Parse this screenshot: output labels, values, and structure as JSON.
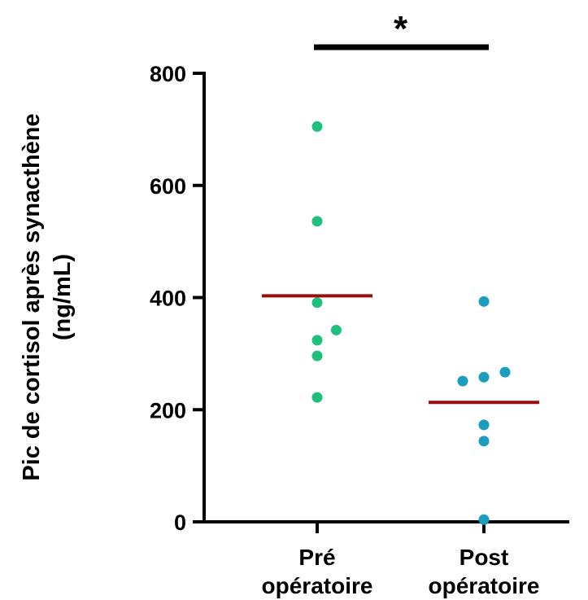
{
  "chart_data": {
    "type": "scatter",
    "title": "",
    "ylabel_line1": "Pic de cortisol après synacthène",
    "ylabel_line2": "(ng/mL)",
    "xlabel": "",
    "ylim": [
      0,
      800
    ],
    "yticks": [
      0,
      200,
      400,
      600,
      800
    ],
    "categories": [
      {
        "line1": "Pré",
        "line2": "opératoire"
      },
      {
        "line1": "Post",
        "line2": "opératoire"
      }
    ],
    "series": [
      {
        "category": "Pré opératoire",
        "color": "#1fbf7d",
        "points": [
          {
            "offset": 0,
            "value": 705
          },
          {
            "offset": 0,
            "value": 536
          },
          {
            "offset": 0,
            "value": 391
          },
          {
            "offset": 0.9,
            "value": 342
          },
          {
            "offset": 0,
            "value": 324
          },
          {
            "offset": 0,
            "value": 296
          },
          {
            "offset": 0,
            "value": 222
          }
        ],
        "mean": 403
      },
      {
        "category": "Post opératoire",
        "color": "#1b9dbd",
        "points": [
          {
            "offset": 0,
            "value": 393
          },
          {
            "offset": 1.0,
            "value": 267
          },
          {
            "offset": 0,
            "value": 258
          },
          {
            "offset": -1.0,
            "value": 251
          },
          {
            "offset": 0,
            "value": 173
          },
          {
            "offset": 0,
            "value": 144
          },
          {
            "offset": 0,
            "value": 4
          }
        ],
        "mean": 213
      }
    ],
    "mean_color": "#9b0d0d",
    "significance": {
      "label": "*",
      "between": [
        0,
        1
      ]
    }
  }
}
